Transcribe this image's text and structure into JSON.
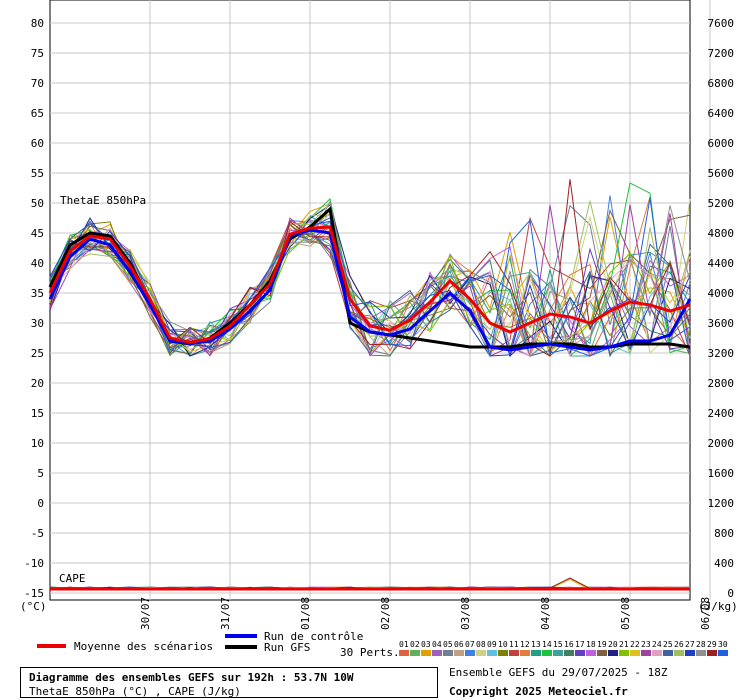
{
  "chart_data": {
    "type": "line",
    "left_axis": {
      "min": -15,
      "max": 80,
      "step": 5,
      "unit_label": "(°C)"
    },
    "right_axis": {
      "min": 0,
      "max": 7600,
      "step": 400,
      "unit_label": "(J/kg)"
    },
    "x_range": [
      0,
      192
    ],
    "x_ticks": [
      {
        "label": "30/07",
        "x": 30
      },
      {
        "label": "31/07",
        "x": 54
      },
      {
        "label": "01/08",
        "x": 78
      },
      {
        "label": "02/08",
        "x": 102
      },
      {
        "label": "03/08",
        "x": 126
      },
      {
        "label": "04/08",
        "x": 150
      },
      {
        "label": "05/08",
        "x": 174
      },
      {
        "label": "06/08",
        "x": 198
      }
    ],
    "panel_labels": {
      "thetae": "ThetaE 850hPa",
      "cape": "CAPE"
    },
    "times": [
      0,
      6,
      12,
      18,
      24,
      30,
      36,
      42,
      48,
      54,
      60,
      66,
      72,
      78,
      84,
      90,
      96,
      102,
      108,
      114,
      120,
      126,
      132,
      138,
      144,
      150,
      156,
      162,
      168,
      174,
      180,
      186,
      192
    ],
    "mean_series": {
      "name": "Moyenne des scénarios",
      "color": "#ee0000",
      "values": [
        35,
        42,
        44.5,
        44,
        39.5,
        34,
        27.5,
        26.8,
        27.4,
        29.5,
        33,
        36.5,
        44.8,
        45.8,
        46,
        34,
        29.5,
        28.8,
        30.5,
        33.5,
        37,
        34,
        30,
        28.5,
        30,
        31.5,
        31,
        30,
        32,
        33.5,
        33,
        32,
        33
      ]
    },
    "control_series": {
      "name": "Run de contrôle",
      "color": "#0000ee",
      "values": [
        34,
        41,
        44,
        43,
        38.5,
        33,
        27,
        26.6,
        27,
        29,
        32,
        35.5,
        44.5,
        45.5,
        45,
        31,
        28.5,
        28,
        29,
        32,
        35,
        32,
        26,
        25.5,
        26,
        26.5,
        26,
        25.5,
        26,
        27,
        27,
        28,
        34
      ]
    },
    "gfs_series": {
      "name": "Run GFS",
      "color": "#000000",
      "values": [
        36,
        43,
        45,
        44.5,
        40,
        33.5,
        27,
        26.5,
        27.5,
        30,
        33,
        37,
        44,
        46,
        49,
        30,
        28.5,
        28,
        27.5,
        27,
        26.5,
        26,
        26,
        26,
        26.5,
        26.5,
        26.5,
        26,
        26,
        26.5,
        26.5,
        26.5,
        26
      ]
    },
    "perts_label": "30 Perts.",
    "perturbations": [
      {
        "name": "01",
        "color": "#e06040"
      },
      {
        "name": "02",
        "color": "#60b060"
      },
      {
        "name": "03",
        "color": "#e0a000"
      },
      {
        "name": "04",
        "color": "#a060c0"
      },
      {
        "name": "05",
        "color": "#708090"
      },
      {
        "name": "06",
        "color": "#c0a080"
      },
      {
        "name": "07",
        "color": "#4080e0"
      },
      {
        "name": "08",
        "color": "#d0d080"
      },
      {
        "name": "09",
        "color": "#60c0e0"
      },
      {
        "name": "10",
        "color": "#808000"
      },
      {
        "name": "11",
        "color": "#c04040"
      },
      {
        "name": "12",
        "color": "#e08040"
      },
      {
        "name": "13",
        "color": "#20a080"
      },
      {
        "name": "14",
        "color": "#20c040"
      },
      {
        "name": "15",
        "color": "#40a0a0"
      },
      {
        "name": "16",
        "color": "#408060"
      },
      {
        "name": "17",
        "color": "#6040c0"
      },
      {
        "name": "18",
        "color": "#c060e0"
      },
      {
        "name": "19",
        "color": "#806040"
      },
      {
        "name": "20",
        "color": "#202080"
      },
      {
        "name": "21",
        "color": "#80c000"
      },
      {
        "name": "22",
        "color": "#e0c020"
      },
      {
        "name": "23",
        "color": "#a040a0"
      },
      {
        "name": "24",
        "color": "#e0a0c0"
      },
      {
        "name": "25",
        "color": "#4060a0"
      },
      {
        "name": "26",
        "color": "#a0c060"
      },
      {
        "name": "27",
        "color": "#2040c0"
      },
      {
        "name": "28",
        "color": "#909090"
      },
      {
        "name": "29",
        "color": "#a02020"
      },
      {
        "name": "30",
        "color": "#2060e0"
      }
    ],
    "xlabel": "",
    "ylabel": "(°C)",
    "y2label": "(J/kg)"
  },
  "legend": {
    "mean_label": "Moyenne des scénarios",
    "control_label": "Run de contrôle",
    "gfs_label": "Run GFS"
  },
  "info": {
    "title": "Diagramme des ensembles GEFS sur 192h : 53.7N 10W",
    "subtitle": "ThetaE 850hPa (°C) , CAPE (J/kg)",
    "run": "Ensemble GEFS du 29/07/2025 - 18Z",
    "copyright": "Copyright 2025 Meteociel.fr"
  }
}
